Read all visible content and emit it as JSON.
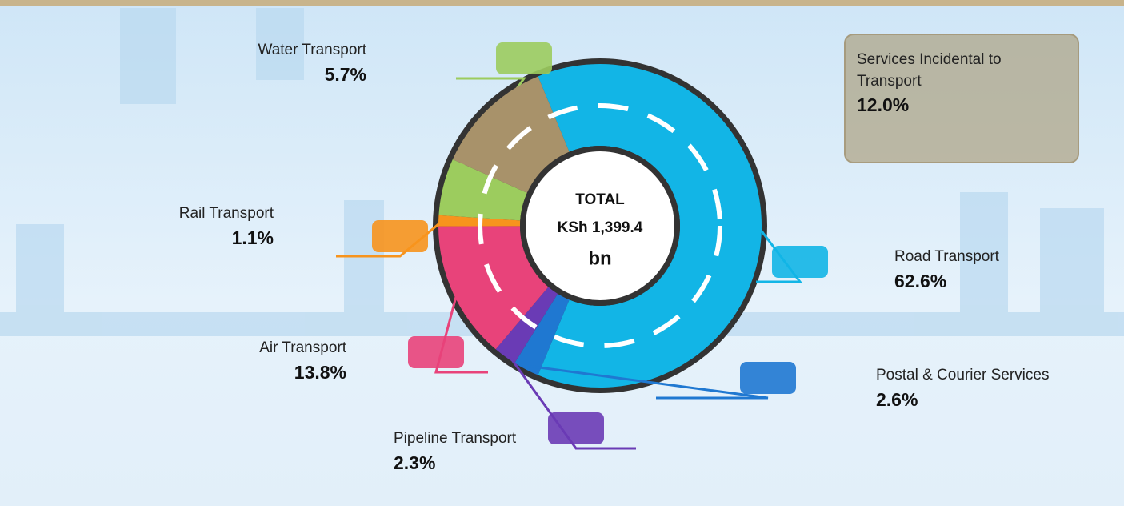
{
  "chart_data": {
    "type": "pie",
    "center_lines": [
      "TOTAL",
      "KSh 1,399.4",
      "bn"
    ],
    "categories": [
      "Road Transport",
      "Postal & Courier Services",
      "Pipeline Transport",
      "Air Transport",
      "Rail Transport",
      "Water Transport",
      "Services Incidental to Transport"
    ],
    "values": [
      62.6,
      2.6,
      2.3,
      13.8,
      1.1,
      5.7,
      12.0
    ],
    "value_labels": [
      "62.6%",
      "2.6%",
      "2.3%",
      "13.8%",
      "1.1%",
      "5.7%",
      "12.0%"
    ],
    "colors": [
      "#12b5e6",
      "#1f78d1",
      "#6a3bb5",
      "#e8437a",
      "#f7941d",
      "#9ccc5e",
      "#a8926a"
    ]
  }
}
